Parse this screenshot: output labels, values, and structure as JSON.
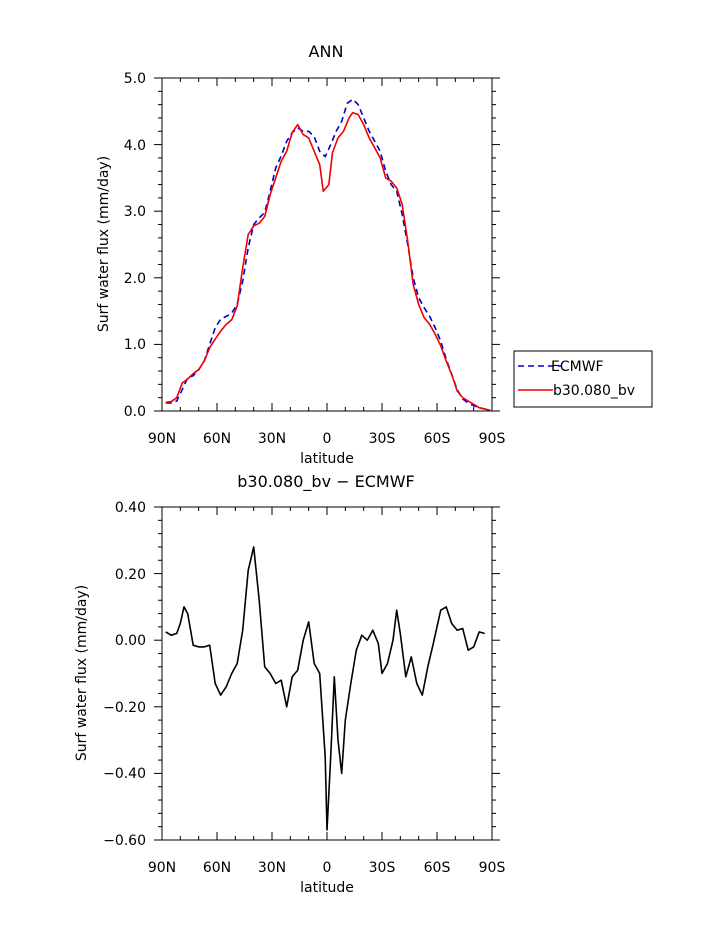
{
  "chart_data": [
    {
      "type": "line",
      "title": "ANN",
      "xlabel": "latitude",
      "ylabel": "Surf water flux (mm/day)",
      "xlim": [
        90,
        -90
      ],
      "ylim": [
        0,
        5
      ],
      "xticks": [
        90,
        60,
        30,
        0,
        -30,
        -60,
        -90
      ],
      "xtick_labels": [
        "90N",
        "60N",
        "30N",
        "0",
        "30S",
        "60S",
        "90S"
      ],
      "yticks": [
        0,
        1,
        2,
        3,
        4,
        5
      ],
      "ytick_labels": [
        "0.0",
        "1.0",
        "2.0",
        "3.0",
        "4.0",
        "5.0"
      ],
      "legend_position": "right",
      "series": [
        {
          "name": "ECMWF",
          "color": "#0000cc",
          "dash": "dashed",
          "points": [
            [
              88,
              0.12
            ],
            [
              85,
              0.12
            ],
            [
              82,
              0.15
            ],
            [
              79,
              0.32
            ],
            [
              76,
              0.5
            ],
            [
              73,
              0.53
            ],
            [
              70,
              0.62
            ],
            [
              67,
              0.75
            ],
            [
              64,
              1.0
            ],
            [
              61,
              1.25
            ],
            [
              58,
              1.38
            ],
            [
              55,
              1.42
            ],
            [
              52,
              1.47
            ],
            [
              49,
              1.6
            ],
            [
              46,
              1.95
            ],
            [
              43,
              2.45
            ],
            [
              40,
              2.8
            ],
            [
              37,
              2.9
            ],
            [
              34,
              2.98
            ],
            [
              31,
              3.3
            ],
            [
              28,
              3.65
            ],
            [
              25,
              3.83
            ],
            [
              22,
              4.05
            ],
            [
              19,
              4.18
            ],
            [
              16,
              4.25
            ],
            [
              13,
              4.2
            ],
            [
              10,
              4.2
            ],
            [
              7,
              4.12
            ],
            [
              4,
              3.9
            ],
            [
              1,
              3.82
            ],
            [
              -2,
              4.0
            ],
            [
              -5,
              4.2
            ],
            [
              -8,
              4.35
            ],
            [
              -11,
              4.62
            ],
            [
              -14,
              4.68
            ],
            [
              -17,
              4.6
            ],
            [
              -20,
              4.4
            ],
            [
              -23,
              4.2
            ],
            [
              -26,
              4.05
            ],
            [
              -29,
              3.9
            ],
            [
              -32,
              3.6
            ],
            [
              -35,
              3.4
            ],
            [
              -38,
              3.3
            ],
            [
              -41,
              2.95
            ],
            [
              -44,
              2.5
            ],
            [
              -47,
              2.0
            ],
            [
              -50,
              1.7
            ],
            [
              -53,
              1.55
            ],
            [
              -56,
              1.42
            ],
            [
              -59,
              1.25
            ],
            [
              -62,
              1.05
            ],
            [
              -65,
              0.78
            ],
            [
              -68,
              0.55
            ],
            [
              -71,
              0.32
            ],
            [
              -74,
              0.18
            ],
            [
              -77,
              0.12
            ],
            [
              -80,
              0.08
            ],
            [
              -83,
              0.05
            ],
            [
              -86,
              0.03
            ],
            [
              -89,
              0.01
            ]
          ]
        },
        {
          "name": "b30.080_bv",
          "color": "#ee0000",
          "dash": "solid",
          "points": [
            [
              88,
              0.13
            ],
            [
              85,
              0.14
            ],
            [
              82,
              0.2
            ],
            [
              79,
              0.42
            ],
            [
              76,
              0.48
            ],
            [
              73,
              0.56
            ],
            [
              70,
              0.62
            ],
            [
              67,
              0.75
            ],
            [
              64,
              0.95
            ],
            [
              61,
              1.08
            ],
            [
              58,
              1.2
            ],
            [
              55,
              1.3
            ],
            [
              52,
              1.37
            ],
            [
              49,
              1.58
            ],
            [
              46,
              2.15
            ],
            [
              43,
              2.65
            ],
            [
              40,
              2.78
            ],
            [
              37,
              2.82
            ],
            [
              34,
              2.92
            ],
            [
              31,
              3.25
            ],
            [
              28,
              3.5
            ],
            [
              25,
              3.75
            ],
            [
              22,
              3.9
            ],
            [
              19,
              4.18
            ],
            [
              16,
              4.3
            ],
            [
              13,
              4.15
            ],
            [
              10,
              4.1
            ],
            [
              7,
              3.9
            ],
            [
              4,
              3.7
            ],
            [
              2,
              3.3
            ],
            [
              -1,
              3.4
            ],
            [
              -3,
              3.88
            ],
            [
              -6,
              4.1
            ],
            [
              -9,
              4.2
            ],
            [
              -12,
              4.4
            ],
            [
              -14,
              4.48
            ],
            [
              -17,
              4.45
            ],
            [
              -20,
              4.3
            ],
            [
              -23,
              4.1
            ],
            [
              -26,
              3.95
            ],
            [
              -29,
              3.8
            ],
            [
              -32,
              3.5
            ],
            [
              -35,
              3.45
            ],
            [
              -38,
              3.35
            ],
            [
              -41,
              3.1
            ],
            [
              -44,
              2.55
            ],
            [
              -47,
              1.9
            ],
            [
              -50,
              1.6
            ],
            [
              -53,
              1.4
            ],
            [
              -56,
              1.3
            ],
            [
              -59,
              1.15
            ],
            [
              -62,
              0.98
            ],
            [
              -65,
              0.75
            ],
            [
              -68,
              0.55
            ],
            [
              -71,
              0.3
            ],
            [
              -74,
              0.2
            ],
            [
              -77,
              0.15
            ],
            [
              -80,
              0.1
            ],
            [
              -83,
              0.05
            ],
            [
              -86,
              0.03
            ],
            [
              -89,
              0.01
            ]
          ]
        }
      ]
    },
    {
      "type": "line",
      "title": "b30.080_bv − ECMWF",
      "xlabel": "latitude",
      "ylabel": "Surf water flux (mm/day)",
      "xlim": [
        90,
        -90
      ],
      "ylim": [
        -0.6,
        0.4
      ],
      "xticks": [
        90,
        60,
        30,
        0,
        -30,
        -60,
        -90
      ],
      "xtick_labels": [
        "90N",
        "60N",
        "30N",
        "0",
        "30S",
        "60S",
        "90S"
      ],
      "yticks": [
        -0.6,
        -0.4,
        -0.2,
        0,
        0.2,
        0.4
      ],
      "ytick_labels": [
        "−0.60",
        "−0.40",
        "−0.20",
        "0.00",
        "0.20",
        "0.40"
      ],
      "series": [
        {
          "color": "#000000",
          "dash": "solid",
          "points": [
            [
              88,
              0.025
            ],
            [
              85,
              0.015
            ],
            [
              82,
              0.02
            ],
            [
              80,
              0.05
            ],
            [
              78,
              0.1
            ],
            [
              76,
              0.08
            ],
            [
              73,
              -0.015
            ],
            [
              70,
              -0.02
            ],
            [
              67,
              -0.02
            ],
            [
              64,
              -0.015
            ],
            [
              61,
              -0.13
            ],
            [
              58,
              -0.165
            ],
            [
              55,
              -0.14
            ],
            [
              52,
              -0.1
            ],
            [
              49,
              -0.07
            ],
            [
              46,
              0.03
            ],
            [
              43,
              0.21
            ],
            [
              40,
              0.28
            ],
            [
              37,
              0.12
            ],
            [
              34,
              -0.08
            ],
            [
              31,
              -0.1
            ],
            [
              28,
              -0.13
            ],
            [
              25,
              -0.12
            ],
            [
              22,
              -0.2
            ],
            [
              19,
              -0.11
            ],
            [
              16,
              -0.09
            ],
            [
              13,
              0.0
            ],
            [
              10,
              0.055
            ],
            [
              7,
              -0.07
            ],
            [
              4,
              -0.1
            ],
            [
              1,
              -0.35
            ],
            [
              0,
              -0.57
            ],
            [
              -2,
              -0.35
            ],
            [
              -4,
              -0.11
            ],
            [
              -6,
              -0.3
            ],
            [
              -8,
              -0.4
            ],
            [
              -10,
              -0.24
            ],
            [
              -13,
              -0.13
            ],
            [
              -16,
              -0.03
            ],
            [
              -19,
              0.015
            ],
            [
              -22,
              0.0
            ],
            [
              -25,
              0.03
            ],
            [
              -28,
              -0.01
            ],
            [
              -30,
              -0.1
            ],
            [
              -33,
              -0.07
            ],
            [
              -36,
              0.0
            ],
            [
              -38,
              0.09
            ],
            [
              -40,
              0.02
            ],
            [
              -43,
              -0.11
            ],
            [
              -46,
              -0.05
            ],
            [
              -49,
              -0.13
            ],
            [
              -52,
              -0.165
            ],
            [
              -55,
              -0.08
            ],
            [
              -58,
              -0.01
            ],
            [
              -62,
              0.09
            ],
            [
              -65,
              0.1
            ],
            [
              -68,
              0.05
            ],
            [
              -71,
              0.03
            ],
            [
              -74,
              0.035
            ],
            [
              -77,
              -0.03
            ],
            [
              -80,
              -0.02
            ],
            [
              -83,
              0.025
            ],
            [
              -86,
              0.02
            ]
          ]
        }
      ]
    }
  ]
}
